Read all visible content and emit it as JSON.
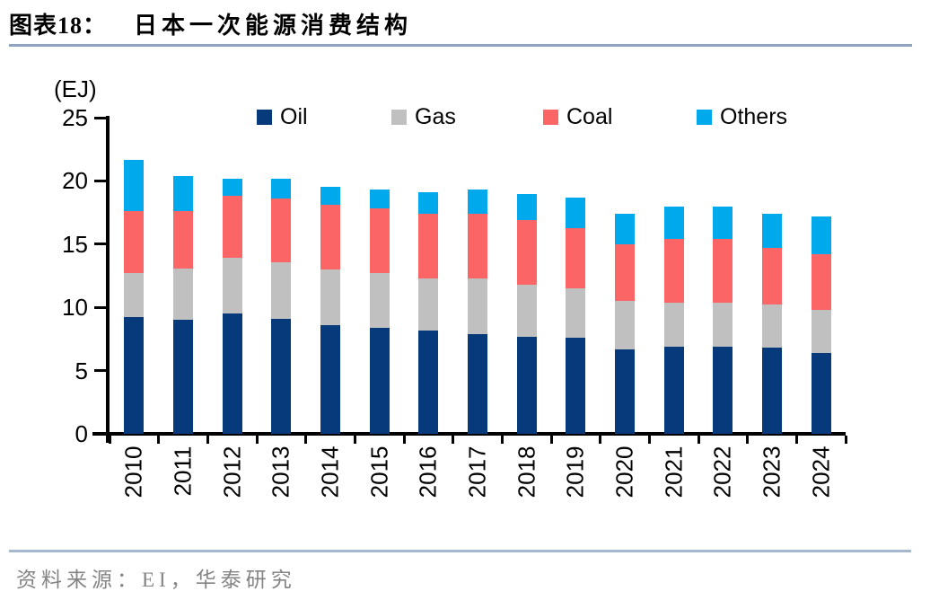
{
  "header": {
    "prefix": "图表18：",
    "title": "日本一次能源消费结构"
  },
  "chart_data": {
    "type": "bar",
    "stacked": true,
    "title": "日本一次能源消费结构",
    "unit_label": "(EJ)",
    "categories": [
      "2010",
      "2011",
      "2012",
      "2013",
      "2014",
      "2015",
      "2016",
      "2017",
      "2018",
      "2019",
      "2020",
      "2021",
      "2022",
      "2023",
      "2024"
    ],
    "series": [
      {
        "name": "Oil",
        "color": "#063A7B",
        "values": [
          9.2,
          9.0,
          9.5,
          9.1,
          8.6,
          8.4,
          8.2,
          7.9,
          7.7,
          7.6,
          6.7,
          6.9,
          6.9,
          6.8,
          6.4
        ]
      },
      {
        "name": "Gas",
        "color": "#C0C0C0",
        "values": [
          3.5,
          4.1,
          4.4,
          4.5,
          4.4,
          4.3,
          4.1,
          4.4,
          4.1,
          3.9,
          3.8,
          3.5,
          3.5,
          3.4,
          3.4
        ]
      },
      {
        "name": "Coal",
        "color": "#FC6565",
        "values": [
          4.9,
          4.5,
          4.9,
          5.0,
          5.1,
          5.1,
          5.1,
          5.1,
          5.1,
          4.8,
          4.5,
          5.0,
          5.0,
          4.5,
          4.4
        ]
      },
      {
        "name": "Others",
        "color": "#00A8EC",
        "values": [
          4.1,
          2.8,
          1.4,
          1.6,
          1.4,
          1.5,
          1.7,
          1.9,
          2.1,
          2.4,
          2.4,
          2.6,
          2.6,
          2.7,
          3.0
        ]
      }
    ],
    "ylim": [
      0,
      25
    ],
    "yticks": [
      0,
      5,
      10,
      15,
      20,
      25
    ],
    "grid": false,
    "legend_position": "top"
  },
  "footer": {
    "source": "资料来源：EI，华泰研究"
  },
  "colors": {
    "axis": "#000000",
    "title_rule": "#8EA4C2",
    "bottom_rule": "#A6B8CE",
    "text": "#000000",
    "source_text": "#848484"
  }
}
